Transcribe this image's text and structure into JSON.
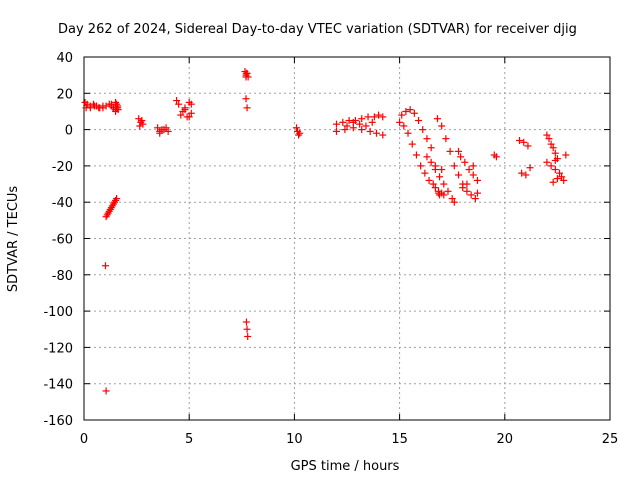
{
  "chart_data": {
    "type": "scatter",
    "title": "Day 262 of 2024, Sidereal Day-to-day VTEC variation (SDTVAR) for receiver djig",
    "xlabel": "GPS time / hours",
    "ylabel": "SDTVAR / TECUs",
    "xlim": [
      0,
      25
    ],
    "ylim": [
      -160,
      40
    ],
    "xticks": [
      0,
      5,
      10,
      15,
      20,
      25
    ],
    "yticks": [
      40,
      20,
      0,
      -20,
      -40,
      -60,
      -80,
      -100,
      -120,
      -140,
      -160
    ],
    "grid": true,
    "marker": "+",
    "color": "#ff0000",
    "series": [
      {
        "name": "SDTVAR",
        "x": [
          0.05,
          0.15,
          0.3,
          0.45,
          0.6,
          0.75,
          0.9,
          1.05,
          0.1,
          0.3,
          0.5,
          0.7,
          0.9,
          1.3,
          1.4,
          1.5,
          1.2,
          1.3,
          1.4,
          1.5,
          1.55,
          1.6,
          1.62,
          1.5,
          1.55,
          1.6,
          1.05,
          1.1,
          1.15,
          1.2,
          1.25,
          1.3,
          1.35,
          1.4,
          1.45,
          1.5,
          1.55,
          1.02,
          1.05,
          2.6,
          2.7,
          2.8,
          2.65,
          2.75,
          3.5,
          3.6,
          3.7,
          3.6,
          3.8,
          3.9,
          4.0,
          4.4,
          4.5,
          4.6,
          4.7,
          4.8,
          4.9,
          5.0,
          5.1,
          4.8,
          5.0,
          5.1,
          7.65,
          7.7,
          7.75,
          7.8,
          7.7,
          7.75,
          7.72,
          7.75,
          7.78,
          7.7,
          7.72,
          10.1,
          10.15,
          10.2,
          10.25,
          12.0,
          12.3,
          12.6,
          12.9,
          13.2,
          13.5,
          13.8,
          14.0,
          14.2,
          12.0,
          12.4,
          12.8,
          13.2,
          13.6,
          13.9,
          14.2,
          12.5,
          12.8,
          13.1,
          13.4,
          13.7,
          15.1,
          15.3,
          15.5,
          15.7,
          15.9,
          16.1,
          16.3,
          16.5,
          16.7,
          16.85,
          15.0,
          15.2,
          15.4,
          15.6,
          15.8,
          16.0,
          16.2,
          16.4,
          16.6,
          16.7,
          16.85,
          16.9,
          17.0,
          17.1,
          16.3,
          16.5,
          16.7,
          16.9,
          17.1,
          17.3,
          16.8,
          17.0,
          17.2,
          17.4,
          17.6,
          17.8,
          18.0,
          18.2,
          18.4,
          18.6,
          18.7,
          17.0,
          17.5,
          17.6,
          17.8,
          17.9,
          18.1,
          18.3,
          18.5,
          18.7,
          18.0,
          18.2,
          18.5,
          19.5,
          19.6,
          20.7,
          20.9,
          21.1,
          21.0,
          21.2,
          20.8,
          22.0,
          22.1,
          22.2,
          22.3,
          22.4,
          22.5,
          22.0,
          22.2,
          22.4,
          22.6,
          22.7,
          22.8,
          22.9,
          22.3,
          22.5,
          22.4
        ],
        "y": [
          15,
          14,
          13,
          14,
          13,
          12,
          13,
          13,
          12,
          12,
          13,
          12,
          12,
          14,
          12,
          11,
          14,
          13,
          12,
          10,
          12,
          13,
          11,
          15,
          14,
          12,
          -48,
          -47,
          -46,
          -45,
          -44,
          -43,
          -42,
          -41,
          -40,
          -39,
          -38,
          -75,
          -144,
          6,
          4,
          3,
          2,
          5,
          1,
          -2,
          0,
          -1,
          0,
          1,
          -1,
          16,
          14,
          8,
          10,
          12,
          7,
          15,
          14,
          11,
          7,
          9,
          32,
          30,
          31,
          29,
          17,
          12,
          -106,
          -110,
          -114,
          29,
          31,
          1,
          -1,
          -3,
          -2,
          3,
          4,
          5,
          5,
          6,
          7,
          7,
          8,
          7,
          -1,
          0,
          1,
          0,
          -1,
          -2,
          -3,
          2,
          4,
          3,
          2,
          4,
          8,
          10,
          11,
          9,
          5,
          0,
          -5,
          -10,
          -20,
          -35,
          4,
          2,
          -2,
          -8,
          -14,
          -20,
          -24,
          -28,
          -30,
          -32,
          -34,
          -36,
          -35,
          -36,
          -15,
          -18,
          -22,
          -26,
          -30,
          -34,
          6,
          2,
          -5,
          -12,
          -20,
          -25,
          -30,
          -34,
          -36,
          -38,
          -35,
          -22,
          -38,
          -40,
          -12,
          -15,
          -18,
          -22,
          -25,
          -28,
          -32,
          -30,
          -20,
          -14,
          -15,
          -6,
          -7,
          -9,
          -25,
          -21,
          -24,
          -3,
          -5,
          -8,
          -10,
          -13,
          -16,
          -18,
          -20,
          -22,
          -24,
          -26,
          -28,
          -14,
          -29,
          -27,
          -17
        ]
      }
    ]
  }
}
